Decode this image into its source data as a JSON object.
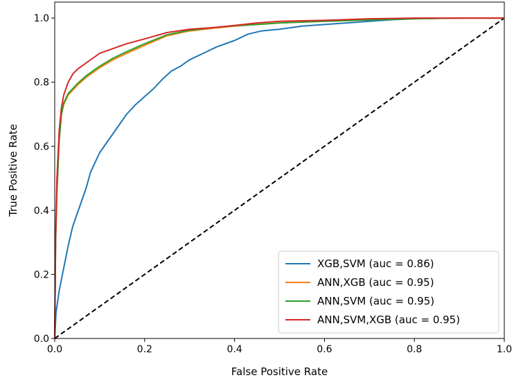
{
  "chart_data": {
    "type": "line",
    "title": "",
    "xlabel": "False Positive Rate",
    "ylabel": "True Positive Rate",
    "xlim": [
      0.0,
      1.0
    ],
    "ylim": [
      0.0,
      1.05
    ],
    "xticks": [
      0.0,
      0.2,
      0.4,
      0.6,
      0.8,
      1.0
    ],
    "yticks": [
      0.0,
      0.2,
      0.4,
      0.6,
      0.8,
      1.0
    ],
    "xtick_labels": [
      "0.0",
      "0.2",
      "0.4",
      "0.6",
      "0.8",
      "1.0"
    ],
    "ytick_labels": [
      "0.0",
      "0.2",
      "0.4",
      "0.6",
      "0.8",
      "1.0"
    ],
    "grid": false,
    "legend_position": "lower-right",
    "series": [
      {
        "name": "XGB,SVM (auc = 0.86)",
        "color": "#1f77b4",
        "style": "solid",
        "x": [
          0,
          0.003,
          0.01,
          0.02,
          0.03,
          0.04,
          0.05,
          0.06,
          0.07,
          0.08,
          0.09,
          0.1,
          0.12,
          0.14,
          0.16,
          0.18,
          0.2,
          0.22,
          0.24,
          0.26,
          0.28,
          0.3,
          0.33,
          0.36,
          0.4,
          0.43,
          0.46,
          0.5,
          0.55,
          0.6,
          0.65,
          0.7,
          0.75,
          0.8,
          0.9,
          1.0
        ],
        "y": [
          0,
          0.08,
          0.15,
          0.22,
          0.29,
          0.35,
          0.39,
          0.43,
          0.47,
          0.52,
          0.55,
          0.58,
          0.62,
          0.66,
          0.7,
          0.73,
          0.755,
          0.78,
          0.81,
          0.835,
          0.85,
          0.87,
          0.89,
          0.91,
          0.93,
          0.95,
          0.96,
          0.965,
          0.975,
          0.98,
          0.985,
          0.99,
          0.995,
          0.998,
          1.0,
          1.0
        ]
      },
      {
        "name": "ANN,XGB (auc = 0.95)",
        "color": "#ff7f0e",
        "style": "solid",
        "x": [
          0,
          0.002,
          0.005,
          0.01,
          0.015,
          0.02,
          0.03,
          0.04,
          0.05,
          0.07,
          0.1,
          0.13,
          0.16,
          0.2,
          0.25,
          0.3,
          0.35,
          0.4,
          0.45,
          0.5,
          0.6,
          0.7,
          0.8,
          0.9,
          1.0
        ],
        "y": [
          0,
          0.3,
          0.46,
          0.62,
          0.7,
          0.73,
          0.76,
          0.775,
          0.79,
          0.815,
          0.845,
          0.87,
          0.89,
          0.915,
          0.945,
          0.96,
          0.968,
          0.975,
          0.98,
          0.985,
          0.99,
          0.995,
          0.998,
          1.0,
          1.0
        ]
      },
      {
        "name": "ANN,SVM (auc = 0.95)",
        "color": "#2ca02c",
        "style": "solid",
        "x": [
          0,
          0.002,
          0.005,
          0.01,
          0.015,
          0.02,
          0.03,
          0.04,
          0.05,
          0.07,
          0.1,
          0.13,
          0.16,
          0.2,
          0.25,
          0.3,
          0.35,
          0.4,
          0.45,
          0.5,
          0.6,
          0.7,
          0.8,
          0.9,
          1.0
        ],
        "y": [
          0,
          0.3,
          0.46,
          0.62,
          0.7,
          0.735,
          0.765,
          0.78,
          0.795,
          0.82,
          0.85,
          0.875,
          0.895,
          0.92,
          0.948,
          0.962,
          0.97,
          0.976,
          0.98,
          0.985,
          0.99,
          0.994,
          0.998,
          1.0,
          1.0
        ]
      },
      {
        "name": "ANN,SVM,XGB (auc = 0.95)",
        "color": "#d62728",
        "style": "solid",
        "x": [
          0,
          0.002,
          0.005,
          0.01,
          0.015,
          0.02,
          0.03,
          0.04,
          0.05,
          0.07,
          0.1,
          0.13,
          0.16,
          0.2,
          0.25,
          0.3,
          0.35,
          0.4,
          0.45,
          0.5,
          0.6,
          0.7,
          0.8,
          0.9,
          1.0
        ],
        "y": [
          0,
          0.32,
          0.5,
          0.65,
          0.72,
          0.76,
          0.8,
          0.825,
          0.84,
          0.86,
          0.89,
          0.905,
          0.92,
          0.935,
          0.955,
          0.965,
          0.97,
          0.977,
          0.985,
          0.99,
          0.993,
          0.998,
          1.0,
          1.0,
          1.0
        ]
      },
      {
        "name": "",
        "color": "#000000",
        "style": "dashed",
        "x": [
          0,
          1
        ],
        "y": [
          0,
          1
        ]
      }
    ]
  }
}
